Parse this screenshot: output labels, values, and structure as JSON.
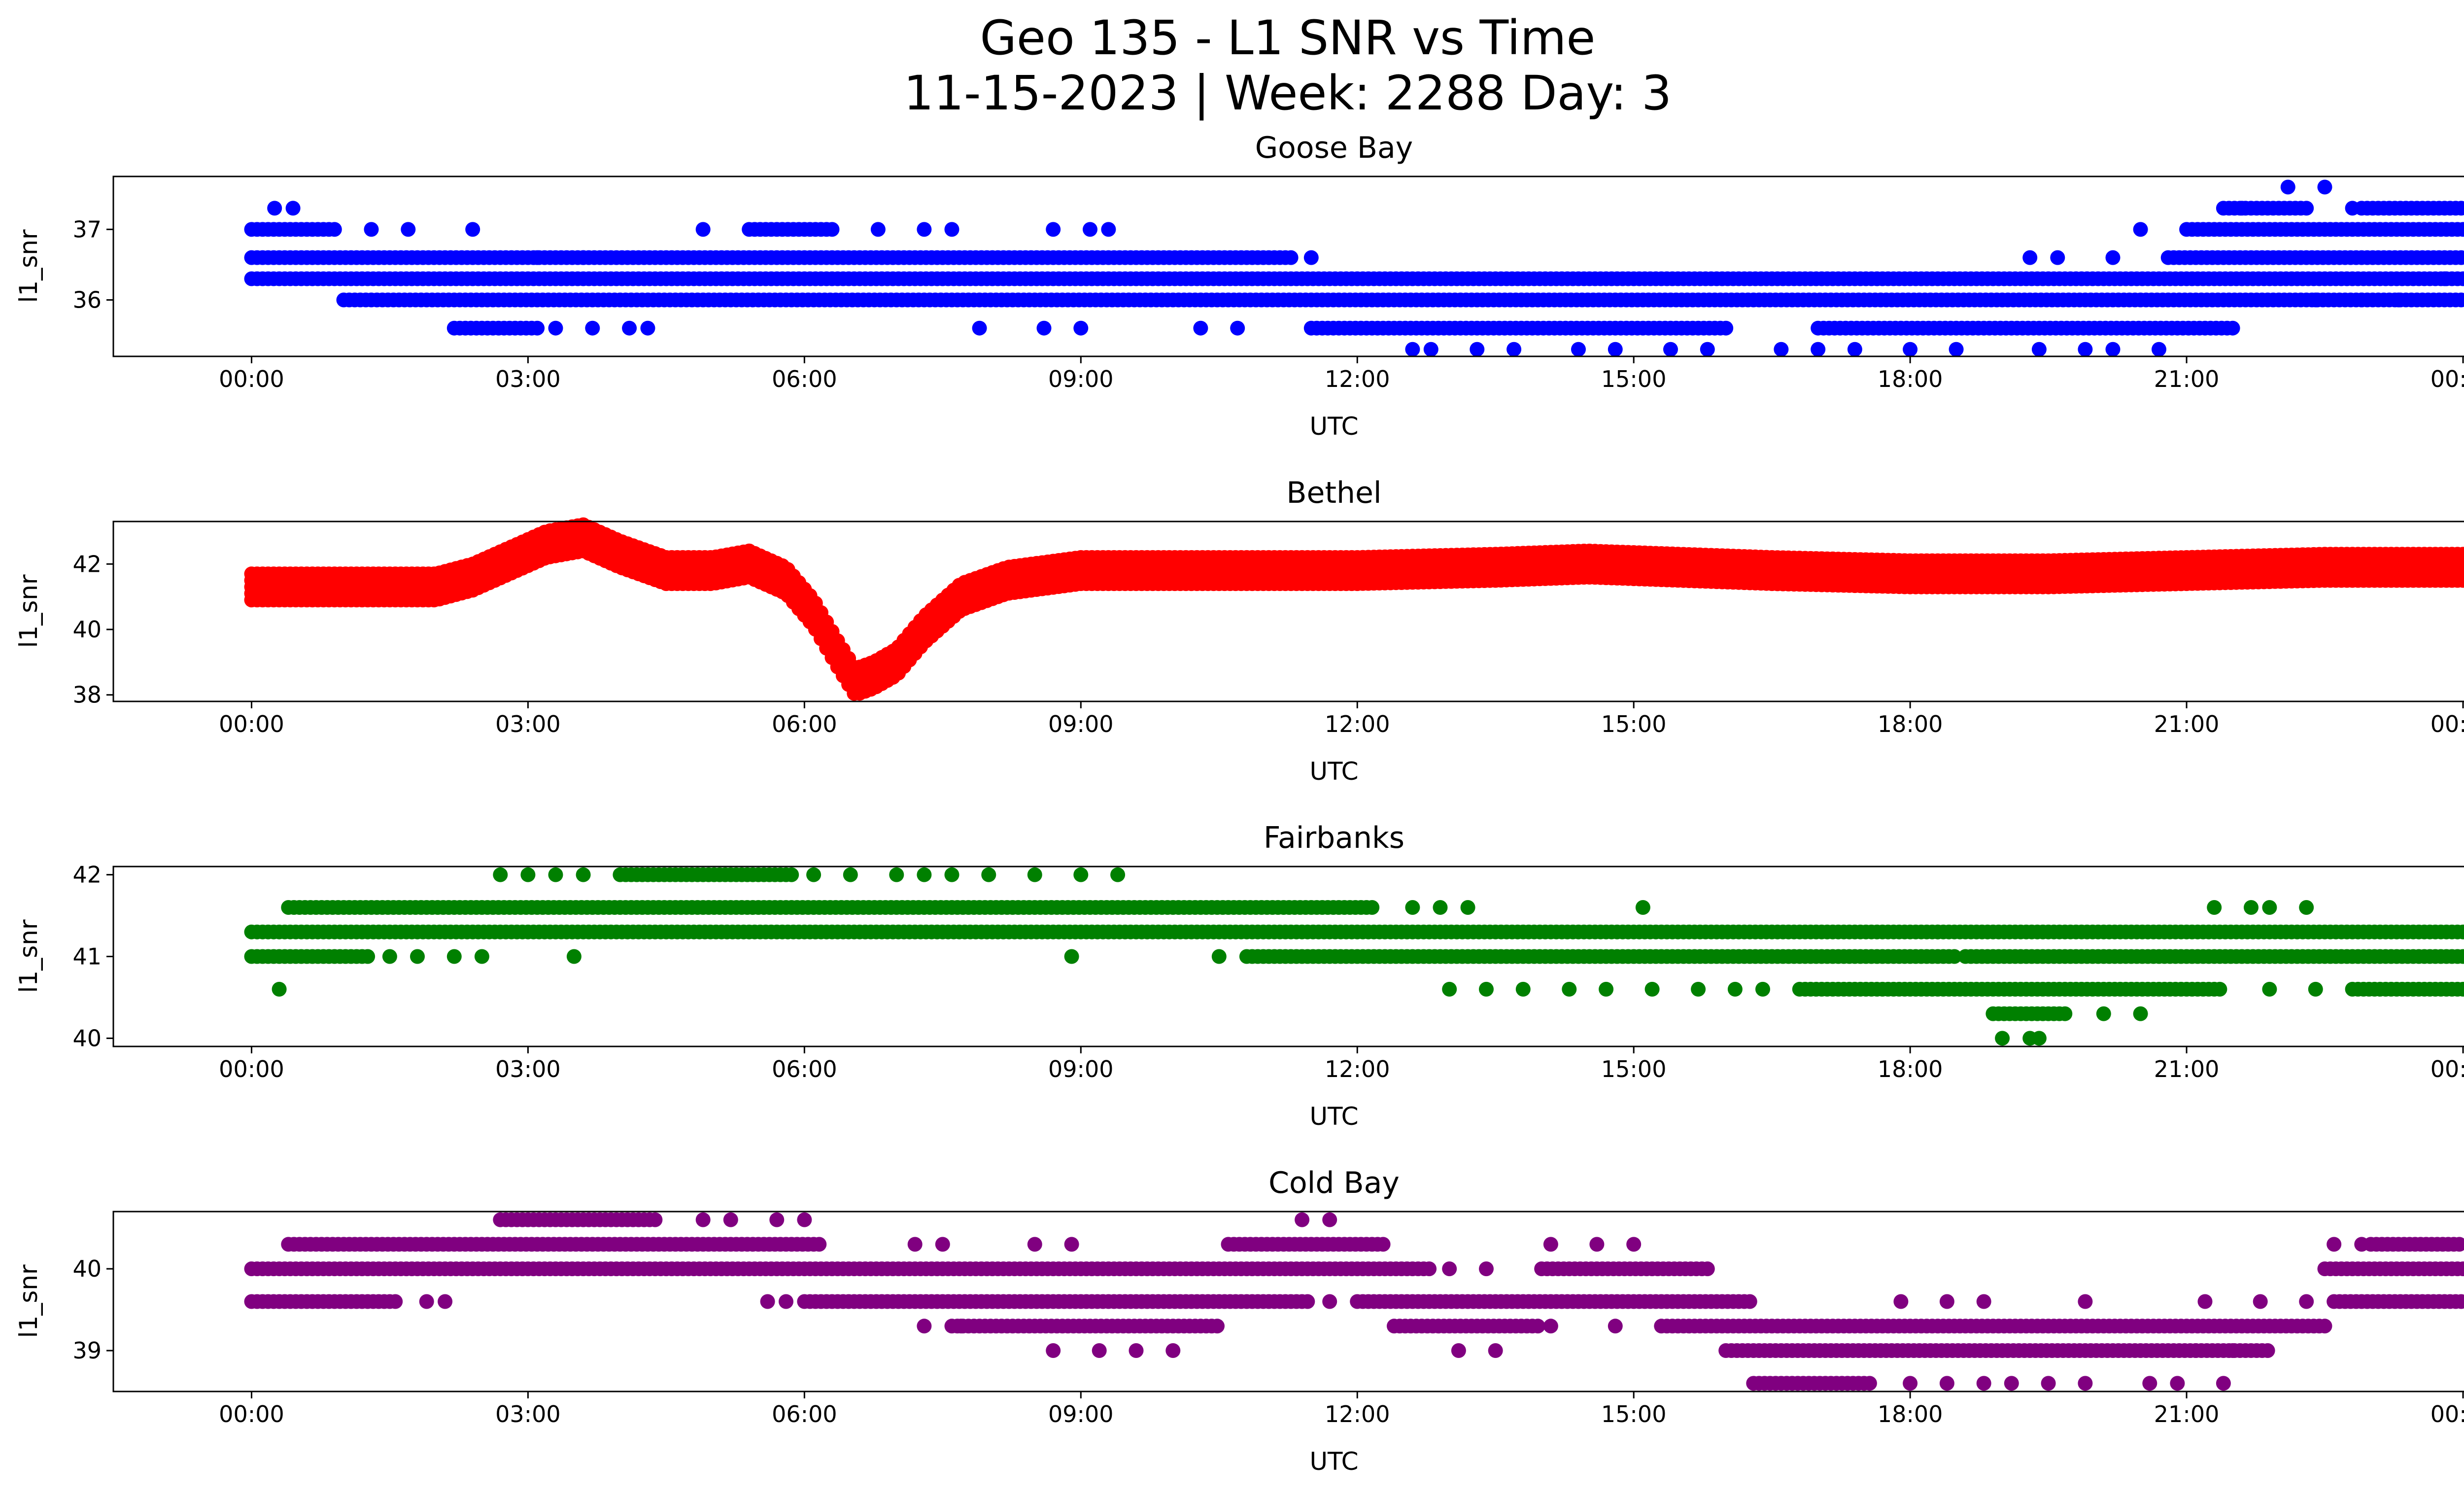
{
  "figure": {
    "title_line1": "Geo 135 - L1 SNR vs Time",
    "title_line2": "11-15-2023 | Week: 2288 Day: 3"
  },
  "chart_data": [
    {
      "type": "scatter",
      "title": "Goose Bay",
      "xlabel": "UTC",
      "ylabel": "l1_snr",
      "color": "#0000ff",
      "xlim": [
        -1.5,
        25.0
      ],
      "ylim": [
        35.2,
        37.75
      ],
      "xticks": [
        "00:00",
        "03:00",
        "06:00",
        "09:00",
        "12:00",
        "15:00",
        "18:00",
        "21:00",
        "00:00"
      ],
      "yticks": [
        36,
        37
      ],
      "levels": [
        35.3,
        35.6,
        36.0,
        36.3,
        36.6,
        37.0,
        37.3,
        37.6
      ],
      "segments": [
        {
          "y": 36.3,
          "x": [
            0,
            24
          ]
        },
        {
          "y": 36.6,
          "x": [
            0,
            11.3
          ]
        },
        {
          "y": 36.6,
          "x": [
            20.8,
            24
          ]
        },
        {
          "y": 36.0,
          "x": [
            1.0,
            24
          ]
        },
        {
          "y": 37.0,
          "x": [
            0,
            0.9
          ]
        },
        {
          "y": 37.0,
          "x": [
            5.4,
            6.3
          ]
        },
        {
          "y": 37.0,
          "x": [
            21.0,
            24
          ]
        },
        {
          "y": 35.6,
          "x": [
            2.2,
            3.1
          ]
        },
        {
          "y": 35.6,
          "x": [
            11.5,
            16.0
          ]
        },
        {
          "y": 35.6,
          "x": [
            17.0,
            21.5
          ]
        },
        {
          "y": 37.3,
          "x": [
            21.4,
            22.3
          ]
        },
        {
          "y": 37.3,
          "x": [
            22.9,
            24
          ]
        }
      ],
      "scatter_points": [
        [
          0.25,
          37.3
        ],
        [
          0.45,
          37.3
        ],
        [
          1.3,
          37.0
        ],
        [
          1.7,
          37.0
        ],
        [
          2.4,
          37.0
        ],
        [
          4.9,
          37.0
        ],
        [
          6.8,
          37.0
        ],
        [
          7.3,
          37.0
        ],
        [
          7.6,
          37.0
        ],
        [
          8.7,
          37.0
        ],
        [
          9.1,
          37.0
        ],
        [
          9.3,
          37.0
        ],
        [
          3.3,
          35.6
        ],
        [
          3.7,
          35.6
        ],
        [
          4.1,
          35.6
        ],
        [
          4.3,
          35.6
        ],
        [
          7.9,
          35.6
        ],
        [
          8.6,
          35.6
        ],
        [
          9.0,
          35.6
        ],
        [
          10.3,
          35.6
        ],
        [
          10.7,
          35.6
        ],
        [
          3.1,
          36.6
        ],
        [
          3.6,
          36.6
        ],
        [
          11.5,
          36.6
        ],
        [
          12.6,
          35.3
        ],
        [
          12.8,
          35.3
        ],
        [
          13.3,
          35.3
        ],
        [
          13.7,
          35.3
        ],
        [
          14.4,
          35.3
        ],
        [
          14.8,
          35.3
        ],
        [
          15.4,
          35.3
        ],
        [
          15.8,
          35.3
        ],
        [
          16.6,
          35.3
        ],
        [
          17.0,
          35.3
        ],
        [
          17.4,
          35.3
        ],
        [
          18.0,
          35.3
        ],
        [
          18.5,
          35.3
        ],
        [
          19.4,
          35.3
        ],
        [
          19.9,
          35.3
        ],
        [
          20.2,
          35.3
        ],
        [
          20.7,
          35.3
        ],
        [
          19.3,
          36.6
        ],
        [
          19.6,
          36.6
        ],
        [
          20.2,
          36.6
        ],
        [
          20.5,
          37.0
        ],
        [
          21.6,
          37.3
        ],
        [
          22.1,
          37.6
        ],
        [
          22.5,
          37.6
        ],
        [
          22.8,
          37.3
        ],
        [
          23.2,
          37.3
        ],
        [
          22.4,
          36.0
        ],
        [
          22.9,
          36.0
        ],
        [
          23.3,
          36.0
        ],
        [
          23.8,
          36.3
        ]
      ]
    },
    {
      "type": "scatter",
      "title": "Bethel",
      "xlabel": "UTC",
      "ylabel": "l1_snr",
      "color": "#ff0000",
      "xlim": [
        -1.5,
        25.0
      ],
      "ylim": [
        37.8,
        43.3
      ],
      "xticks": [
        "00:00",
        "03:00",
        "06:00",
        "09:00",
        "12:00",
        "15:00",
        "18:00",
        "21:00",
        "00:00"
      ],
      "yticks": [
        38,
        40,
        42
      ],
      "curve": [
        [
          0,
          41.3
        ],
        [
          1.0,
          41.3
        ],
        [
          2.0,
          41.3
        ],
        [
          2.4,
          41.6
        ],
        [
          2.8,
          42.1
        ],
        [
          3.2,
          42.6
        ],
        [
          3.6,
          42.8
        ],
        [
          4.0,
          42.3
        ],
        [
          4.5,
          41.8
        ],
        [
          5.0,
          41.8
        ],
        [
          5.4,
          42.0
        ],
        [
          5.8,
          41.5
        ],
        [
          6.1,
          40.5
        ],
        [
          6.35,
          39.3
        ],
        [
          6.55,
          38.4
        ],
        [
          6.75,
          38.6
        ],
        [
          7.0,
          39.0
        ],
        [
          7.3,
          40.0
        ],
        [
          7.7,
          41.0
        ],
        [
          8.2,
          41.5
        ],
        [
          9.0,
          41.8
        ],
        [
          10.5,
          41.8
        ],
        [
          12.0,
          41.8
        ],
        [
          13.5,
          41.9
        ],
        [
          14.5,
          42.0
        ],
        [
          15.5,
          41.9
        ],
        [
          16.5,
          41.8
        ],
        [
          18.0,
          41.7
        ],
        [
          19.5,
          41.7
        ],
        [
          21.0,
          41.8
        ],
        [
          22.5,
          41.9
        ],
        [
          24.0,
          41.9
        ]
      ],
      "band_halfwidth": 0.4
    },
    {
      "type": "scatter",
      "title": "Fairbanks",
      "xlabel": "UTC",
      "ylabel": "l1_snr",
      "color": "#008000",
      "xlim": [
        -1.5,
        25.0
      ],
      "ylim": [
        39.9,
        42.1
      ],
      "xticks": [
        "00:00",
        "03:00",
        "06:00",
        "09:00",
        "12:00",
        "15:00",
        "18:00",
        "21:00",
        "00:00"
      ],
      "yticks": [
        40,
        41,
        42
      ],
      "levels": [
        40.0,
        40.3,
        40.6,
        41.0,
        41.3,
        41.6,
        42.0
      ],
      "segments": [
        {
          "y": 41.3,
          "x": [
            0,
            24
          ]
        },
        {
          "y": 41.6,
          "x": [
            0.4,
            12.2
          ]
        },
        {
          "y": 41.0,
          "x": [
            0,
            1.3
          ]
        },
        {
          "y": 41.0,
          "x": [
            10.8,
            18.5
          ]
        },
        {
          "y": 41.0,
          "x": [
            18.6,
            24
          ]
        },
        {
          "y": 42.0,
          "x": [
            4.0,
            5.9
          ]
        },
        {
          "y": 40.6,
          "x": [
            16.8,
            21.4
          ]
        },
        {
          "y": 40.6,
          "x": [
            22.8,
            24
          ]
        },
        {
          "y": 40.3,
          "x": [
            18.9,
            19.7
          ]
        }
      ],
      "scatter_points": [
        [
          0.3,
          40.6
        ],
        [
          1.5,
          41.0
        ],
        [
          1.8,
          41.0
        ],
        [
          2.2,
          41.0
        ],
        [
          2.5,
          41.0
        ],
        [
          3.5,
          41.0
        ],
        [
          8.9,
          41.0
        ],
        [
          10.5,
          41.0
        ],
        [
          2.7,
          42.0
        ],
        [
          3.0,
          42.0
        ],
        [
          3.3,
          42.0
        ],
        [
          3.6,
          42.0
        ],
        [
          6.1,
          42.0
        ],
        [
          6.5,
          42.0
        ],
        [
          7.0,
          42.0
        ],
        [
          7.3,
          42.0
        ],
        [
          7.6,
          42.0
        ],
        [
          8.0,
          42.0
        ],
        [
          8.5,
          42.0
        ],
        [
          9.0,
          42.0
        ],
        [
          9.4,
          42.0
        ],
        [
          12.6,
          41.6
        ],
        [
          12.9,
          41.6
        ],
        [
          13.2,
          41.6
        ],
        [
          15.1,
          41.6
        ],
        [
          13.0,
          40.6
        ],
        [
          13.4,
          40.6
        ],
        [
          13.8,
          40.6
        ],
        [
          14.3,
          40.6
        ],
        [
          14.7,
          40.6
        ],
        [
          15.2,
          40.6
        ],
        [
          15.7,
          40.6
        ],
        [
          16.1,
          40.6
        ],
        [
          16.4,
          40.6
        ],
        [
          21.9,
          40.6
        ],
        [
          22.4,
          40.6
        ],
        [
          20.1,
          40.3
        ],
        [
          20.5,
          40.3
        ],
        [
          19.0,
          40.0
        ],
        [
          19.3,
          40.0
        ],
        [
          19.4,
          40.0
        ],
        [
          21.3,
          41.6
        ],
        [
          21.7,
          41.6
        ],
        [
          21.9,
          41.6
        ],
        [
          22.3,
          41.6
        ],
        [
          18.3,
          41.3
        ]
      ]
    },
    {
      "type": "scatter",
      "title": "Cold Bay",
      "xlabel": "UTC",
      "ylabel": "l1_snr",
      "color": "#800080",
      "xlim": [
        -1.5,
        25.0
      ],
      "ylim": [
        38.5,
        40.7
      ],
      "xticks": [
        "00:00",
        "03:00",
        "06:00",
        "09:00",
        "12:00",
        "15:00",
        "18:00",
        "21:00",
        "00:00"
      ],
      "yticks": [
        39,
        40
      ],
      "levels": [
        38.6,
        39.0,
        39.3,
        39.6,
        40.0,
        40.3,
        40.6
      ],
      "segments": [
        {
          "y": 40.0,
          "x": [
            0,
            12.8
          ]
        },
        {
          "y": 40.0,
          "x": [
            14.0,
            15.8
          ]
        },
        {
          "y": 40.0,
          "x": [
            22.5,
            24
          ]
        },
        {
          "y": 39.6,
          "x": [
            0,
            1.6
          ]
        },
        {
          "y": 39.6,
          "x": [
            6.0,
            11.5
          ]
        },
        {
          "y": 39.6,
          "x": [
            12.0,
            16.3
          ]
        },
        {
          "y": 39.6,
          "x": [
            22.6,
            24
          ]
        },
        {
          "y": 40.3,
          "x": [
            0.4,
            6.2
          ]
        },
        {
          "y": 40.3,
          "x": [
            10.6,
            12.3
          ]
        },
        {
          "y": 40.3,
          "x": [
            23.0,
            24
          ]
        },
        {
          "y": 40.6,
          "x": [
            2.7,
            4.4
          ]
        },
        {
          "y": 39.3,
          "x": [
            7.6,
            10.5
          ]
        },
        {
          "y": 39.3,
          "x": [
            12.4,
            14.0
          ]
        },
        {
          "y": 39.3,
          "x": [
            15.3,
            22.5
          ]
        },
        {
          "y": 39.0,
          "x": [
            16.0,
            21.9
          ]
        },
        {
          "y": 38.6,
          "x": [
            16.3,
            17.6
          ]
        }
      ],
      "scatter_points": [
        [
          1.9,
          39.6
        ],
        [
          2.1,
          39.6
        ],
        [
          5.6,
          39.6
        ],
        [
          5.8,
          39.6
        ],
        [
          11.7,
          39.6
        ],
        [
          4.9,
          40.6
        ],
        [
          5.2,
          40.6
        ],
        [
          5.7,
          40.6
        ],
        [
          6.0,
          40.6
        ],
        [
          11.4,
          40.6
        ],
        [
          11.7,
          40.6
        ],
        [
          13.0,
          40.0
        ],
        [
          13.4,
          40.0
        ],
        [
          14.1,
          40.3
        ],
        [
          14.6,
          40.3
        ],
        [
          15.0,
          40.3
        ],
        [
          7.2,
          40.3
        ],
        [
          7.5,
          40.3
        ],
        [
          8.5,
          40.3
        ],
        [
          8.9,
          40.3
        ],
        [
          7.3,
          39.3
        ],
        [
          7.7,
          39.3
        ],
        [
          14.1,
          39.3
        ],
        [
          14.8,
          39.3
        ],
        [
          8.7,
          39.0
        ],
        [
          9.2,
          39.0
        ],
        [
          9.6,
          39.0
        ],
        [
          10.0,
          39.0
        ],
        [
          13.1,
          39.0
        ],
        [
          13.5,
          39.0
        ],
        [
          21.1,
          39.0
        ],
        [
          21.5,
          39.0
        ],
        [
          17.9,
          39.6
        ],
        [
          18.4,
          39.6
        ],
        [
          18.8,
          39.6
        ],
        [
          19.9,
          39.6
        ],
        [
          21.2,
          39.6
        ],
        [
          21.8,
          39.6
        ],
        [
          22.3,
          39.6
        ],
        [
          18.0,
          38.6
        ],
        [
          18.4,
          38.6
        ],
        [
          18.8,
          38.6
        ],
        [
          19.1,
          38.6
        ],
        [
          19.5,
          38.6
        ],
        [
          19.9,
          38.6
        ],
        [
          20.6,
          38.6
        ],
        [
          20.9,
          38.6
        ],
        [
          21.4,
          38.6
        ],
        [
          22.6,
          40.3
        ],
        [
          22.9,
          40.3
        ]
      ]
    }
  ]
}
